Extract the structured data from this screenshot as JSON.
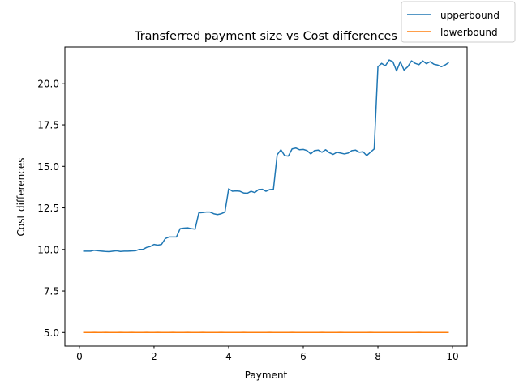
{
  "colors": {
    "upper": "#1f77b4",
    "lower": "#ff7f0e",
    "axis": "#000000",
    "legend_border": "#cccccc"
  },
  "chart_data": {
    "type": "line",
    "title": "Transferred payment size vs Cost differences",
    "xlabel": "Payment",
    "ylabel": "Cost differences",
    "xlim": [
      -0.3894,
      10.39
    ],
    "ylim": [
      4.185,
      22.185
    ],
    "xticks": [
      0,
      2,
      4,
      6,
      8,
      10
    ],
    "xtick_labels": [
      "0",
      "2",
      "4",
      "6",
      "8",
      "10"
    ],
    "yticks": [
      5.0,
      7.5,
      10.0,
      12.5,
      15.0,
      17.5,
      20.0
    ],
    "ytick_labels": [
      "5.0",
      "7.5",
      "10.0",
      "12.5",
      "15.0",
      "17.5",
      "20.0"
    ],
    "grid": false,
    "legend_position": "top-right",
    "x": [
      0.1,
      0.2,
      0.3,
      0.4,
      0.5,
      0.6,
      0.7,
      0.8,
      0.9,
      1.0,
      1.1,
      1.2,
      1.3,
      1.4,
      1.5,
      1.6,
      1.7,
      1.8,
      1.9,
      2.0,
      2.1,
      2.2,
      2.3,
      2.4,
      2.5,
      2.6,
      2.7,
      2.8,
      2.9,
      3.0,
      3.1,
      3.2,
      3.3,
      3.4,
      3.5,
      3.6,
      3.7,
      3.8,
      3.9,
      4.0,
      4.1,
      4.2,
      4.3,
      4.4,
      4.5,
      4.6,
      4.7,
      4.8,
      4.9,
      5.0,
      5.1,
      5.2,
      5.3,
      5.4,
      5.5,
      5.6,
      5.7,
      5.8,
      5.9,
      6.0,
      6.1,
      6.2,
      6.3,
      6.4,
      6.5,
      6.6,
      6.7,
      6.8,
      6.9,
      7.0,
      7.1,
      7.2,
      7.3,
      7.4,
      7.5,
      7.6,
      7.7,
      7.8,
      7.9,
      8.0,
      8.1,
      8.2,
      8.3,
      8.4,
      8.5,
      8.6,
      8.7,
      8.8,
      8.9,
      9.0,
      9.1,
      9.2,
      9.3,
      9.4,
      9.5,
      9.6,
      9.7,
      9.8,
      9.9
    ],
    "series": [
      {
        "name": "upperbound",
        "values": [
          9.9,
          9.9,
          9.9,
          9.95,
          9.92,
          9.9,
          9.88,
          9.87,
          9.9,
          9.92,
          9.88,
          9.9,
          9.9,
          9.91,
          9.92,
          10.0,
          10.0,
          10.12,
          10.18,
          10.3,
          10.26,
          10.3,
          10.65,
          10.75,
          10.75,
          10.75,
          11.25,
          11.28,
          11.3,
          11.25,
          11.22,
          12.2,
          12.22,
          12.25,
          12.25,
          12.15,
          12.1,
          12.15,
          12.25,
          13.65,
          13.5,
          13.52,
          13.5,
          13.4,
          13.38,
          13.5,
          13.42,
          13.6,
          13.62,
          13.5,
          13.6,
          13.62,
          15.7,
          16.0,
          15.65,
          15.62,
          16.05,
          16.1,
          16.0,
          16.02,
          15.95,
          15.75,
          15.95,
          15.98,
          15.85,
          16.0,
          15.82,
          15.72,
          15.85,
          15.8,
          15.75,
          15.8,
          15.95,
          15.98,
          15.85,
          15.88,
          15.65,
          15.85,
          16.05,
          21.0,
          21.2,
          21.05,
          21.4,
          21.3,
          20.75,
          21.3,
          20.8,
          21.0,
          21.35,
          21.2,
          21.12,
          21.35,
          21.18,
          21.3,
          21.15,
          21.1,
          21.0,
          21.1,
          21.25
        ]
      },
      {
        "name": "lowerbound",
        "values": [
          5.0,
          5.0,
          5.0,
          5.01,
          5.0,
          5.0,
          5.01,
          5.0,
          5.0,
          5.0,
          5.01,
          5.0,
          5.0,
          5.01,
          5.0,
          5.0,
          5.0,
          5.01,
          5.0,
          5.0,
          5.01,
          5.0,
          5.0,
          5.0,
          5.01,
          5.0,
          5.0,
          5.0,
          5.01,
          5.0,
          5.0,
          5.0,
          5.01,
          5.0,
          5.0,
          5.0,
          5.0,
          5.01,
          5.0,
          5.0,
          5.0,
          5.0,
          5.0,
          5.01,
          5.0,
          5.0,
          5.0,
          5.0,
          5.0,
          5.0,
          5.01,
          5.0,
          5.0,
          5.0,
          5.0,
          5.0,
          5.01,
          5.0,
          5.0,
          5.0,
          5.0,
          5.0,
          5.0,
          5.0,
          5.01,
          5.0,
          5.0,
          5.0,
          5.0,
          5.01,
          5.0,
          5.0,
          5.0,
          5.0,
          5.0,
          5.0,
          5.0,
          5.01,
          5.0,
          5.0,
          5.0,
          5.0,
          5.0,
          5.0,
          5.0,
          5.0,
          5.0,
          5.0,
          5.0,
          5.0,
          5.01,
          5.0,
          5.0,
          5.0,
          5.0,
          5.0,
          5.0,
          5.0,
          5.0
        ]
      }
    ]
  }
}
